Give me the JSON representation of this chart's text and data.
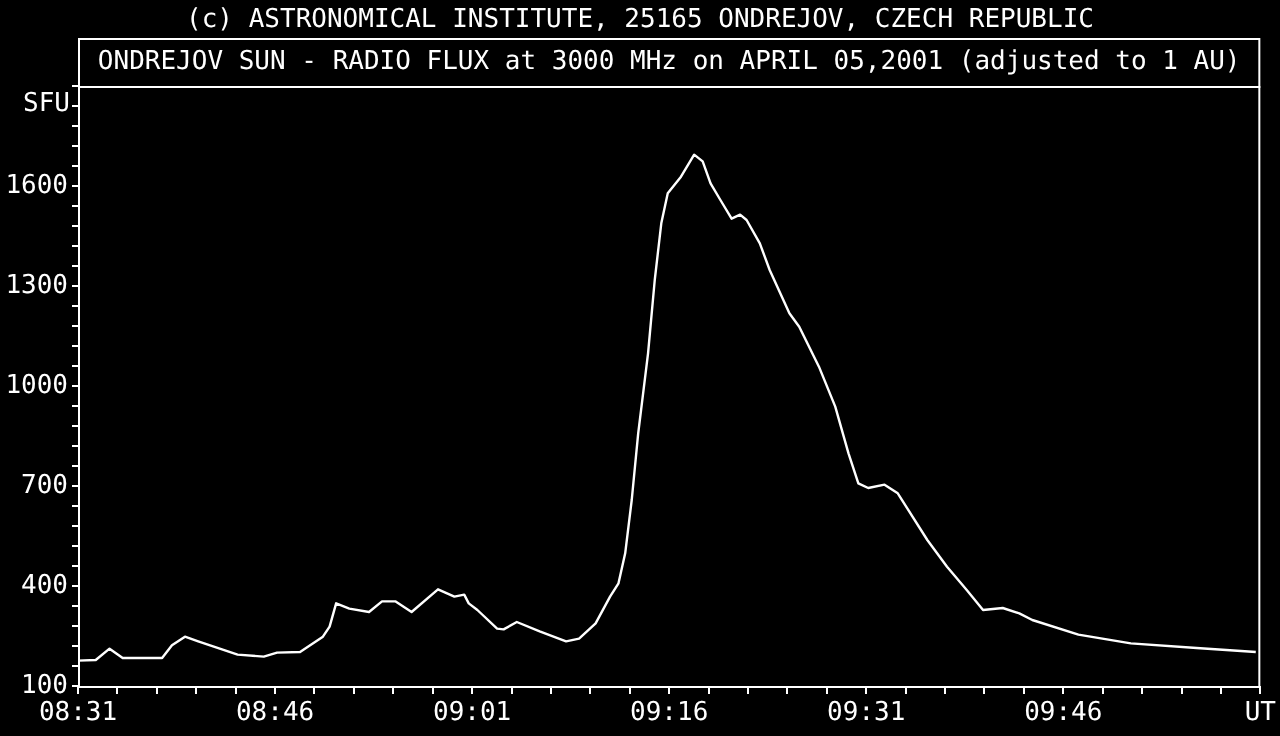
{
  "chart_data": {
    "type": "line",
    "title": "(c) ASTRONOMICAL INSTITUTE, 25165 ONDREJOV, CZECH REPUBLIC",
    "subtitle": "ONDREJOV SUN - RADIO FLUX at 3000 MHz on APRIL 05,2001 (adjusted to 1 AU)",
    "ylabel": "SFU",
    "series": [
      {
        "color": "#ffffff",
        "x": [
          8.5167,
          8.5392,
          8.5567,
          8.5734,
          8.6234,
          8.6359,
          8.6524,
          8.6692,
          8.7192,
          8.7524,
          8.7692,
          8.7984,
          8.8274,
          8.8359,
          8.8442,
          8.8609,
          8.8859,
          8.9024,
          8.9192,
          8.9399,
          8.9734,
          8.9942,
          9.0067,
          9.0124,
          9.0234,
          9.0484,
          9.0567,
          9.0734,
          9.1024,
          9.1359,
          9.1524,
          9.1734,
          9.1917,
          9.2024,
          9.2109,
          9.2192,
          9.2274,
          9.2399,
          9.2484,
          9.2567,
          9.2649,
          9.2817,
          9.2984,
          9.3092,
          9.3192,
          9.3317,
          9.3459,
          9.3567,
          9.3649,
          9.3817,
          9.3942,
          9.4192,
          9.4317,
          9.4567,
          9.4774,
          9.4942,
          9.5067,
          9.5192,
          9.5399,
          9.5567,
          9.5942,
          9.6192,
          9.6442,
          9.6649,
          9.6899,
          9.7109,
          9.7274,
          9.7859,
          9.8524,
          9.9359,
          10.0109
        ],
        "values": [
          176,
          178,
          212,
          184,
          184,
          222,
          248,
          234,
          194,
          188,
          200,
          202,
          248,
          278,
          348,
          332,
          322,
          354,
          354,
          322,
          390,
          368,
          374,
          348,
          328,
          272,
          270,
          292,
          264,
          234,
          242,
          288,
          368,
          408,
          498,
          658,
          858,
          1098,
          1318,
          1488,
          1578,
          1628,
          1694,
          1674,
          1608,
          1558,
          1502,
          1514,
          1498,
          1428,
          1348,
          1218,
          1178,
          1058,
          938,
          798,
          708,
          694,
          704,
          678,
          538,
          458,
          388,
          328,
          334,
          318,
          298,
          254,
          228,
          214,
          202
        ]
      }
    ],
    "xlim": [
      8.5167,
      10.0167
    ],
    "ylim": [
      100,
      1900
    ],
    "xticks": [
      {
        "value": 8.5167,
        "label": "08:31"
      },
      {
        "value": 8.5667,
        "label": null
      },
      {
        "value": 8.6167,
        "label": null
      },
      {
        "value": 8.6667,
        "label": null
      },
      {
        "value": 8.7167,
        "label": null
      },
      {
        "value": 8.7667,
        "label": "08:46"
      },
      {
        "value": 8.8167,
        "label": null
      },
      {
        "value": 8.8667,
        "label": null
      },
      {
        "value": 8.9167,
        "label": null
      },
      {
        "value": 8.9667,
        "label": null
      },
      {
        "value": 9.0167,
        "label": "09:01"
      },
      {
        "value": 9.0667,
        "label": null
      },
      {
        "value": 9.1167,
        "label": null
      },
      {
        "value": 9.1667,
        "label": null
      },
      {
        "value": 9.2167,
        "label": null
      },
      {
        "value": 9.2667,
        "label": "09:16"
      },
      {
        "value": 9.3167,
        "label": null
      },
      {
        "value": 9.3667,
        "label": null
      },
      {
        "value": 9.4167,
        "label": null
      },
      {
        "value": 9.4667,
        "label": null
      },
      {
        "value": 9.5167,
        "label": "09:31"
      },
      {
        "value": 9.5667,
        "label": null
      },
      {
        "value": 9.6167,
        "label": null
      },
      {
        "value": 9.6667,
        "label": null
      },
      {
        "value": 9.7167,
        "label": null
      },
      {
        "value": 9.7667,
        "label": "09:46"
      },
      {
        "value": 9.8167,
        "label": null
      },
      {
        "value": 9.8667,
        "label": null
      },
      {
        "value": 9.9167,
        "label": null
      },
      {
        "value": 9.9667,
        "label": null
      },
      {
        "value": 10.0167,
        "label": "UT"
      }
    ],
    "yticks": [
      100,
      {
        "value": 160,
        "label": null
      },
      {
        "value": 220,
        "label": null
      },
      {
        "value": 280,
        "label": null
      },
      {
        "value": 340,
        "label": null
      },
      400,
      {
        "value": 460,
        "label": null
      },
      {
        "value": 520,
        "label": null
      },
      {
        "value": 580,
        "label": null
      },
      {
        "value": 640,
        "label": null
      },
      700,
      {
        "value": 760,
        "label": null
      },
      {
        "value": 820,
        "label": null
      },
      {
        "value": 880,
        "label": null
      },
      {
        "value": 940,
        "label": null
      },
      1000,
      {
        "value": 1060,
        "label": null
      },
      {
        "value": 1120,
        "label": null
      },
      {
        "value": 1180,
        "label": null
      },
      {
        "value": 1240,
        "label": null
      },
      1300,
      {
        "value": 1360,
        "label": null
      },
      {
        "value": 1420,
        "label": null
      },
      {
        "value": 1480,
        "label": null
      },
      {
        "value": 1540,
        "label": null
      },
      1600,
      {
        "value": 1660,
        "label": null
      },
      {
        "value": 1720,
        "label": null
      },
      {
        "value": 1780,
        "label": null
      },
      {
        "value": 1840,
        "label": null
      },
      {
        "value": 1900,
        "label": null
      }
    ]
  }
}
